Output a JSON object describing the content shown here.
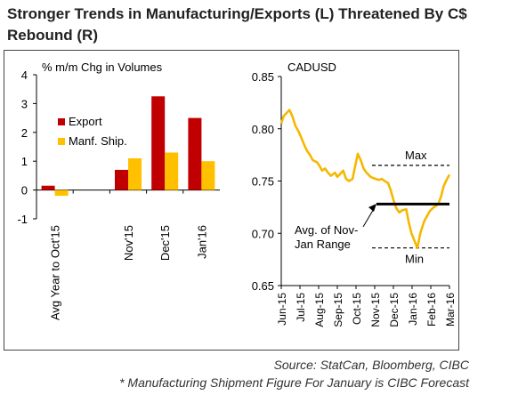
{
  "title": "Stronger Trends in Manufacturing/Exports (L) Threatened By C$ Rebound (R)",
  "source": "Source: StatCan, Bloomberg, CIBC",
  "footnote": "* Manufacturing Shipment Figure For January is CIBC Forecast",
  "colors": {
    "export": "#c00000",
    "manf": "#ffc000",
    "cad_line": "#f5b800",
    "range_line": "#000000"
  },
  "chart_data": [
    {
      "type": "bar",
      "title": "% m/m Chg in Volumes",
      "categories": [
        "Avg Year to Oct'15",
        "",
        "Nov'15",
        "Dec'15",
        "Jan'16"
      ],
      "series": [
        {
          "name": "Export",
          "values": [
            0.15,
            null,
            0.7,
            3.25,
            2.5
          ]
        },
        {
          "name": "Manf. Ship.",
          "values": [
            -0.2,
            null,
            1.1,
            1.3,
            1.0
          ]
        }
      ],
      "ylim": [
        -1,
        4
      ],
      "yticks": [
        -1,
        0,
        1,
        2,
        3,
        4
      ],
      "legend": "center-left"
    },
    {
      "type": "line",
      "title": "CADUSD",
      "xticks": [
        "Jun-15",
        "Jul-15",
        "Aug-15",
        "Sep-15",
        "Oct-15",
        "Nov-15",
        "Dec-15",
        "Jan-16",
        "Feb-16",
        "Mar-16"
      ],
      "ylim": [
        0.65,
        0.85
      ],
      "yticks": [
        "0.65",
        "0.70",
        "0.75",
        "0.80",
        "0.85"
      ],
      "series": [
        {
          "name": "CADUSD",
          "x": [
            "2015-06-01",
            "2015-06-05",
            "2015-06-10",
            "2015-06-15",
            "2015-06-20",
            "2015-06-25",
            "2015-07-01",
            "2015-07-05",
            "2015-07-10",
            "2015-07-15",
            "2015-07-20",
            "2015-07-25",
            "2015-08-01",
            "2015-08-05",
            "2015-08-10",
            "2015-08-15",
            "2015-08-20",
            "2015-08-25",
            "2015-09-01",
            "2015-09-05",
            "2015-09-10",
            "2015-09-15",
            "2015-09-20",
            "2015-09-25",
            "2015-10-01",
            "2015-10-05",
            "2015-10-10",
            "2015-10-15",
            "2015-10-20",
            "2015-10-25",
            "2015-11-01",
            "2015-11-05",
            "2015-11-10",
            "2015-11-15",
            "2015-11-20",
            "2015-11-25",
            "2015-12-01",
            "2015-12-05",
            "2015-12-10",
            "2015-12-15",
            "2015-12-20",
            "2015-12-25",
            "2016-01-01",
            "2016-01-05",
            "2016-01-10",
            "2016-01-15",
            "2016-01-20",
            "2016-01-25",
            "2016-02-01",
            "2016-02-05",
            "2016-02-10",
            "2016-02-15",
            "2016-02-20",
            "2016-02-25",
            "2016-03-01",
            "2016-03-05",
            "2016-03-10",
            "2016-03-15"
          ],
          "y": [
            0.805,
            0.812,
            0.815,
            0.818,
            0.812,
            0.803,
            0.797,
            0.792,
            0.785,
            0.779,
            0.775,
            0.77,
            0.768,
            0.765,
            0.76,
            0.762,
            0.758,
            0.755,
            0.758,
            0.754,
            0.757,
            0.76,
            0.752,
            0.75,
            0.752,
            0.763,
            0.776,
            0.77,
            0.762,
            0.758,
            0.754,
            0.753,
            0.752,
            0.751,
            0.752,
            0.75,
            0.748,
            0.742,
            0.732,
            0.724,
            0.72,
            0.722,
            0.723,
            0.711,
            0.7,
            0.693,
            0.686,
            0.7,
            0.712,
            0.716,
            0.721,
            0.724,
            0.726,
            0.728,
            0.736,
            0.745,
            0.751,
            0.756
          ]
        }
      ],
      "annotations": {
        "max_label": "Max",
        "min_label": "Min",
        "avg_label_1": "Avg. of Nov-",
        "avg_label_2": "Jan Range",
        "max_value": 0.765,
        "min_value": 0.686,
        "avg_value": 0.728
      }
    }
  ]
}
